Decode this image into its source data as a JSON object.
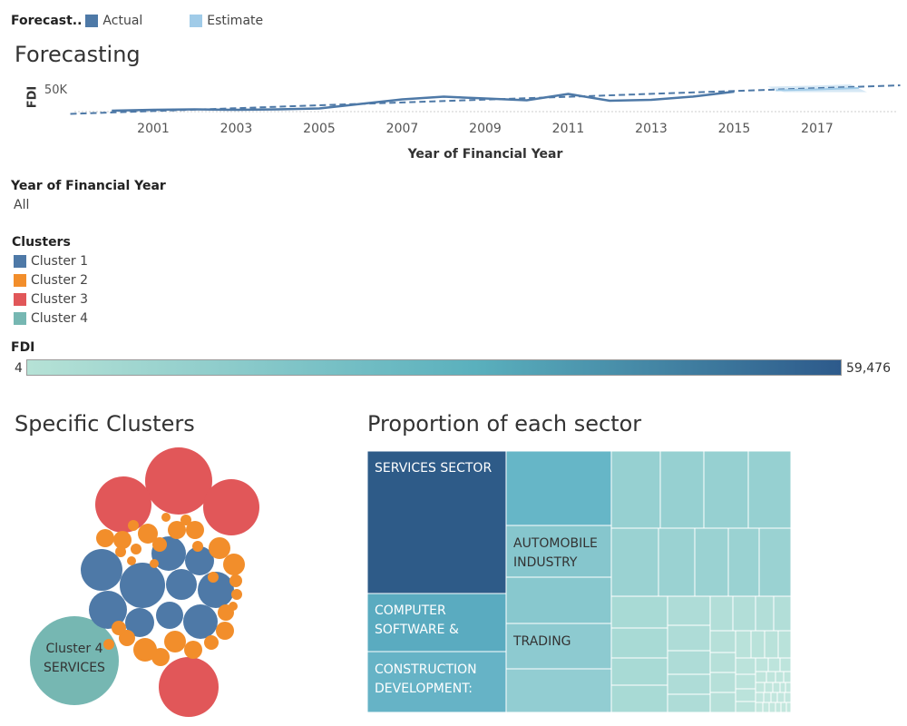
{
  "legend": {
    "title": "Forecast..",
    "items": [
      {
        "label": "Actual",
        "color": "#4e79a7"
      },
      {
        "label": "Estimate",
        "color": "#a0cbe8"
      }
    ]
  },
  "forecast": {
    "title": "Forecasting",
    "ylabel": "FDI",
    "xlabel": "Year of Financial Year",
    "chart_data": {
      "type": "line",
      "title": "Forecasting",
      "xlabel": "Year of Financial Year",
      "ylabel": "FDI",
      "y_tick_labels": [
        "50K"
      ],
      "x_tick_labels": [
        "2001",
        "2003",
        "2005",
        "2007",
        "2009",
        "2011",
        "2013",
        "2015",
        "2017"
      ],
      "series": [
        {
          "name": "Actual",
          "x": [
            2000,
            2001,
            2002,
            2003,
            2004,
            2005,
            2006,
            2007,
            2008,
            2009,
            2010,
            2011,
            2012,
            2013,
            2014,
            2015
          ],
          "y": [
            2000,
            4000,
            5000,
            4000,
            5000,
            7000,
            17000,
            27000,
            33000,
            29000,
            25000,
            39000,
            24000,
            26000,
            33000,
            44000
          ]
        },
        {
          "name": "Estimate",
          "x": [
            2016,
            2017,
            2018
          ],
          "y": [
            47000,
            49000,
            52000
          ],
          "band_low": [
            43000,
            43000,
            43000
          ],
          "band_high": [
            55000,
            57000,
            60000
          ]
        },
        {
          "name": "Trend",
          "x": [
            1999,
            2019
          ],
          "y": [
            -5000,
            58000
          ]
        }
      ]
    }
  },
  "filters": {
    "year_title": "Year of Financial Year",
    "year_value": "All",
    "clusters_title": "Clusters",
    "clusters": [
      {
        "label": "Cluster 1",
        "color": "#4e79a7"
      },
      {
        "label": "Cluster 2",
        "color": "#f28e2b"
      },
      {
        "label": "Cluster 3",
        "color": "#e15759"
      },
      {
        "label": "Cluster 4",
        "color": "#76b7b2"
      }
    ],
    "fdi_title": "FDI",
    "fdi_min": "4",
    "fdi_max": "59,476"
  },
  "clusters_chart": {
    "title": "Specific Clusters",
    "big_label_line1": "Cluster 4",
    "big_label_line2": "SERVICES"
  },
  "treemap": {
    "title": "Proportion of each sector",
    "labels": {
      "services": "SERVICES SECTOR",
      "computer_l1": "COMPUTER",
      "computer_l2": "SOFTWARE &",
      "construction_l1": "CONSTRUCTION",
      "construction_l2": "DEVELOPMENT:",
      "automobile_l1": "AUTOMOBILE",
      "automobile_l2": "INDUSTRY",
      "trading": "TRADING"
    }
  }
}
